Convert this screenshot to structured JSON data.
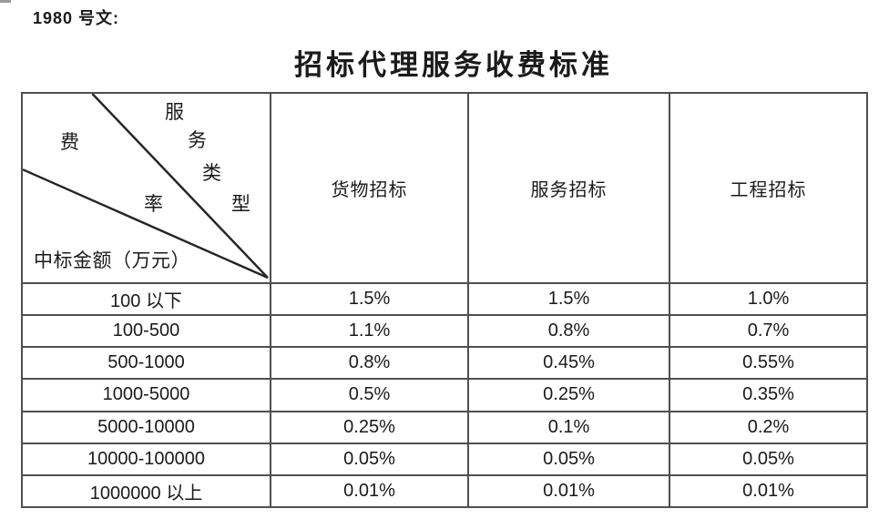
{
  "colors": {
    "border": "#4f4f4f",
    "text": "#1a1a1a",
    "diagonal_line": "#262626",
    "background": "#ffffff"
  },
  "doc_label": "1980 号文:",
  "title": "招标代理服务收费标准",
  "table": {
    "corner": {
      "fee": "费",
      "rate": "率",
      "service_type_chars": [
        "服",
        "务",
        "类",
        "型"
      ],
      "amount_label": "中标金额（万元）"
    },
    "columns": [
      "货物招标",
      "服务招标",
      "工程招标"
    ],
    "rows": [
      {
        "range": "100 以下",
        "goods": "1.5%",
        "services": "1.5%",
        "works": "1.0%"
      },
      {
        "range": "100-500",
        "goods": "1.1%",
        "services": "0.8%",
        "works": "0.7%"
      },
      {
        "range": "500-1000",
        "goods": "0.8%",
        "services": "0.45%",
        "works": "0.55%"
      },
      {
        "range": "1000-5000",
        "goods": "0.5%",
        "services": "0.25%",
        "works": "0.35%"
      },
      {
        "range": "5000-10000",
        "goods": "0.25%",
        "services": "0.1%",
        "works": "0.2%"
      },
      {
        "range": "10000-100000",
        "goods": "0.05%",
        "services": "0.05%",
        "works": "0.05%"
      },
      {
        "range": "1000000 以上",
        "goods": "0.01%",
        "services": "0.01%",
        "works": "0.01%"
      }
    ]
  }
}
